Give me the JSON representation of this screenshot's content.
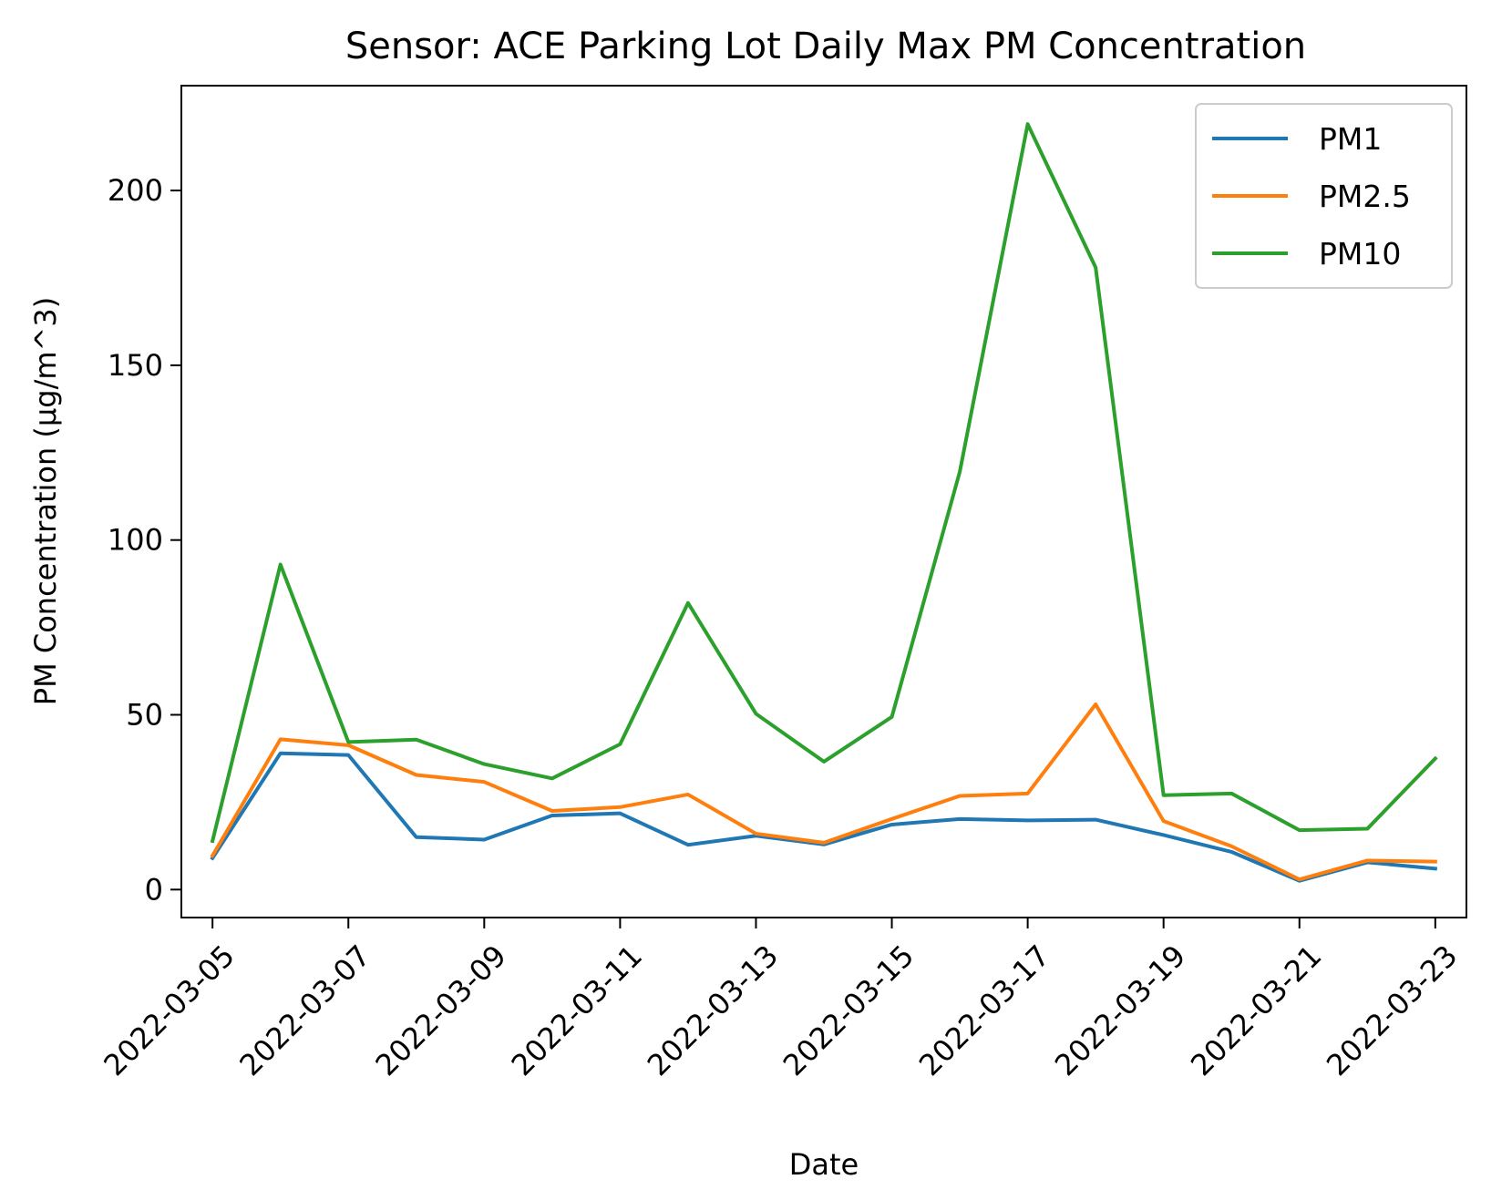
{
  "chart_data": {
    "type": "line",
    "title": "Sensor: ACE Parking Lot Daily Max PM Concentration",
    "xlabel": "Date",
    "ylabel": "PM Concentration (µg/m^3)",
    "x": [
      "2022-03-05",
      "2022-03-06",
      "2022-03-07",
      "2022-03-08",
      "2022-03-09",
      "2022-03-10",
      "2022-03-11",
      "2022-03-12",
      "2022-03-13",
      "2022-03-14",
      "2022-03-15",
      "2022-03-16",
      "2022-03-17",
      "2022-03-18",
      "2022-03-19",
      "2022-03-20",
      "2022-03-21",
      "2022-03-22",
      "2022-03-23"
    ],
    "x_ticks": [
      "2022-03-05",
      "2022-03-07",
      "2022-03-09",
      "2022-03-11",
      "2022-03-13",
      "2022-03-15",
      "2022-03-17",
      "2022-03-19",
      "2022-03-21",
      "2022-03-23"
    ],
    "xlim": [
      "2022-03-04T13:00",
      "2022-03-23T11:00"
    ],
    "y_ticks": [
      0,
      50,
      100,
      150,
      200
    ],
    "ylim": [
      -8,
      230
    ],
    "grid": false,
    "legend_position": "top-right",
    "series": [
      {
        "name": "PM1",
        "color": "#1f77b4",
        "values": [
          9,
          39,
          38.5,
          15,
          14.3,
          21.2,
          21.8,
          12.8,
          15.4,
          12.9,
          18.6,
          20.2,
          19.8,
          20,
          15.6,
          10.8,
          2.5,
          7.8,
          6
        ]
      },
      {
        "name": "PM2.5",
        "color": "#ff7f0e",
        "values": [
          9.7,
          43,
          41.3,
          32.8,
          30.8,
          22.5,
          23.6,
          27.2,
          16,
          13.4,
          20.2,
          26.8,
          27.5,
          53,
          19.6,
          12.4,
          2.9,
          8.3,
          8
        ]
      },
      {
        "name": "PM10",
        "color": "#2ca02c",
        "values": [
          13.9,
          93,
          42.2,
          42.9,
          35.9,
          31.8,
          41.6,
          82,
          50.3,
          36.6,
          49.4,
          119.5,
          219,
          178,
          27,
          27.5,
          17,
          17.4,
          37.5
        ]
      }
    ]
  }
}
